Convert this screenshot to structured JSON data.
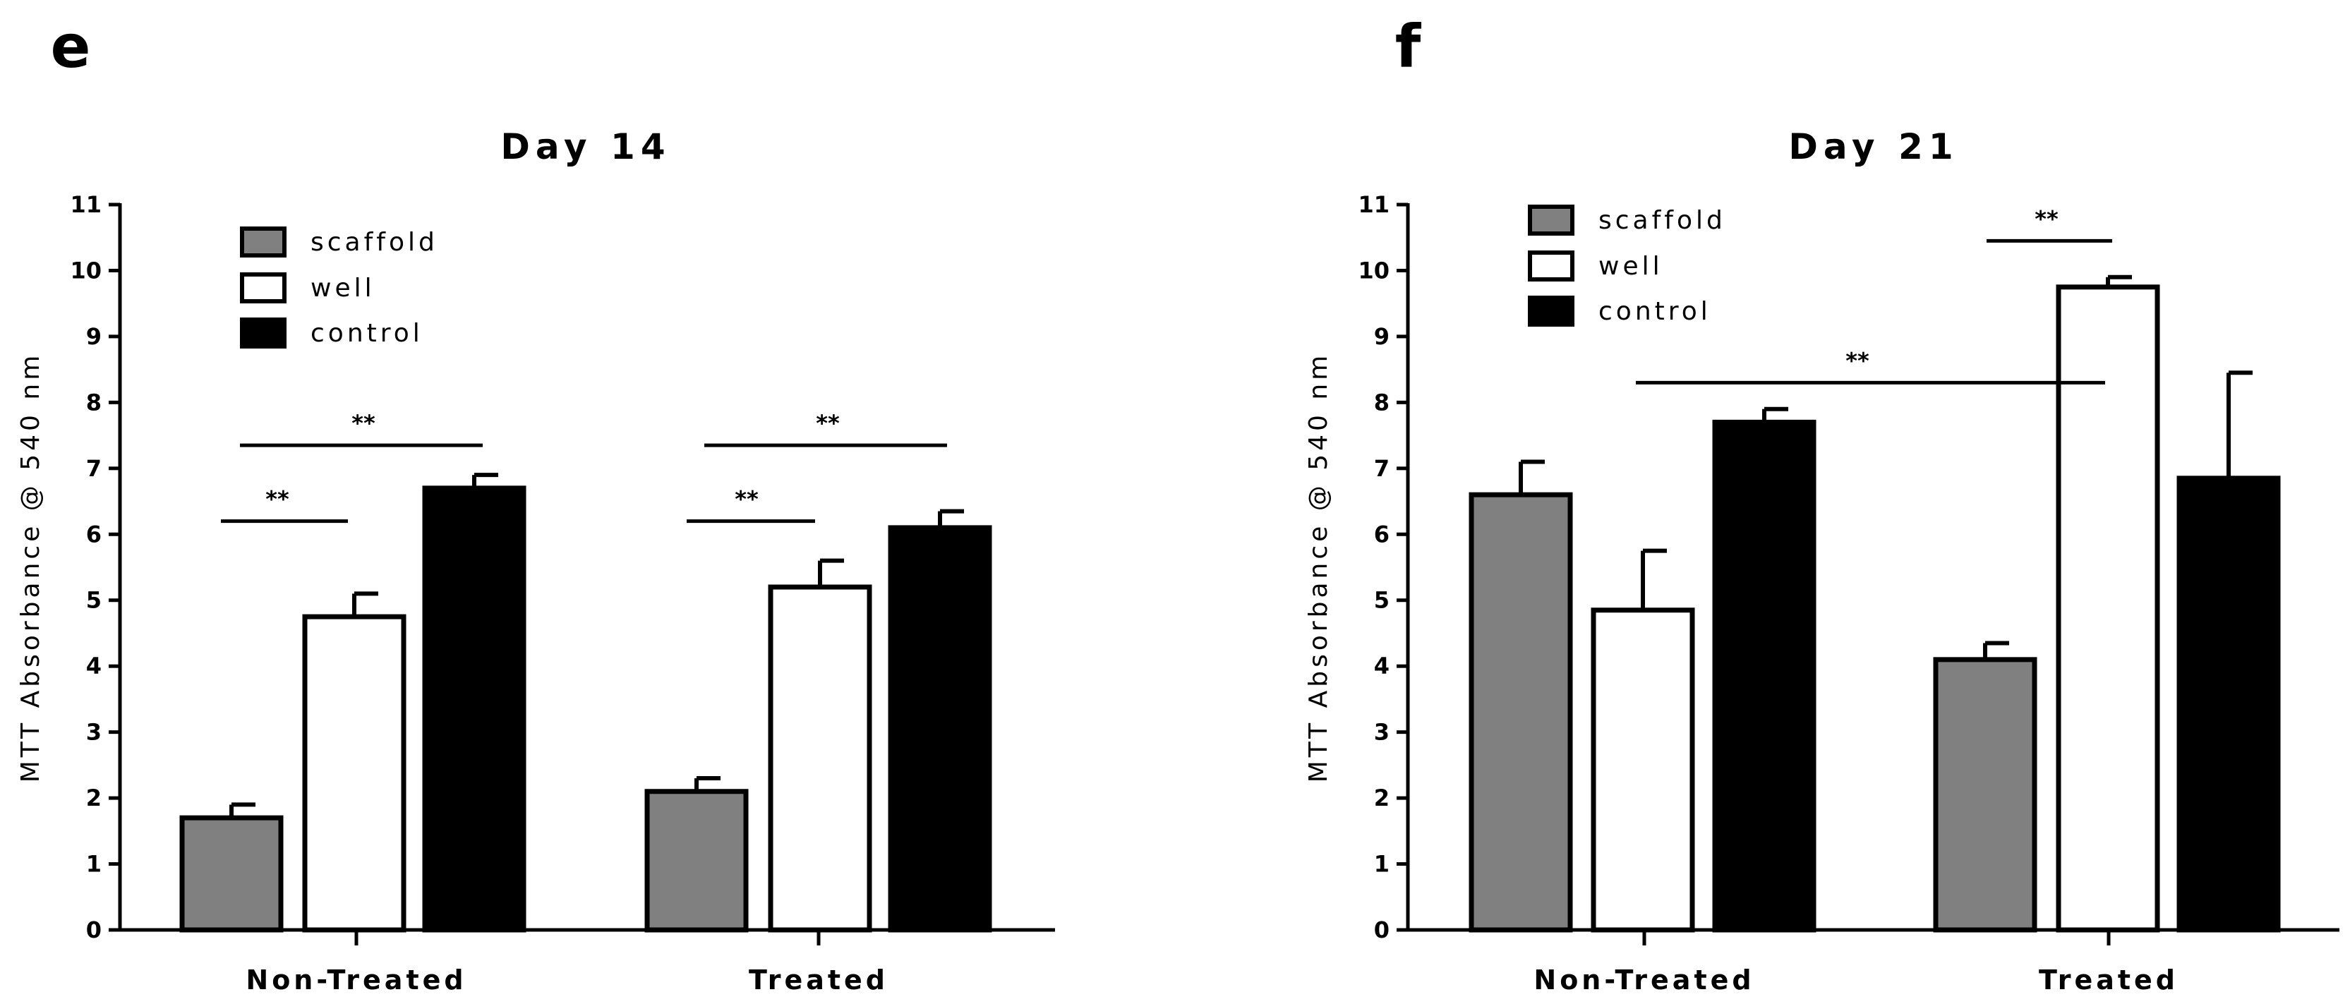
{
  "chart_data": [
    {
      "type": "bar",
      "panel_label": "e",
      "title": "Day 14",
      "xlabel": "",
      "ylabel": "MTT Absorbance @ 540 nm",
      "ylim": [
        0,
        11
      ],
      "yticks": [
        "0",
        "1",
        "2",
        "3",
        "4",
        "5",
        "6",
        "7",
        "8",
        "9",
        "10",
        "11"
      ],
      "categories": [
        "Non-Treated",
        "Treated"
      ],
      "legend_position": "top-left",
      "grid": false,
      "series": [
        {
          "name": "scaffold",
          "color": "#808080",
          "values": [
            1.7,
            2.1
          ],
          "errors": [
            0.2,
            0.2
          ]
        },
        {
          "name": "well",
          "color": "#ffffff",
          "values": [
            4.75,
            5.2
          ],
          "errors": [
            0.35,
            0.4
          ]
        },
        {
          "name": "control",
          "color": "#000000",
          "values": [
            6.7,
            6.1
          ],
          "errors": [
            0.2,
            0.25
          ]
        }
      ],
      "significance": [
        {
          "label": "**",
          "category": 0,
          "from_series": 0,
          "to_series": 1,
          "y": 6.2
        },
        {
          "label": "**",
          "category": 0,
          "from_series": 0,
          "to_series": 2,
          "y": 7.35
        },
        {
          "label": "**",
          "category": 1,
          "from_series": 0,
          "to_series": 1,
          "y": 6.2
        },
        {
          "label": "**",
          "category": 1,
          "from_series": 0,
          "to_series": 2,
          "y": 7.35
        }
      ]
    },
    {
      "type": "bar",
      "panel_label": "f",
      "title": "Day 21",
      "xlabel": "",
      "ylabel": "MTT Absorbance @ 540 nm",
      "ylim": [
        0,
        11
      ],
      "yticks": [
        "0",
        "1",
        "2",
        "3",
        "4",
        "5",
        "6",
        "7",
        "8",
        "9",
        "10",
        "11"
      ],
      "categories": [
        "Non-Treated",
        "Treated"
      ],
      "legend_position": "top-left",
      "grid": false,
      "series": [
        {
          "name": "scaffold",
          "color": "#808080",
          "values": [
            6.6,
            4.1
          ],
          "errors": [
            0.5,
            0.25
          ]
        },
        {
          "name": "well",
          "color": "#ffffff",
          "values": [
            4.85,
            9.75
          ],
          "errors": [
            0.9,
            0.15
          ]
        },
        {
          "name": "control",
          "color": "#000000",
          "values": [
            7.7,
            6.85
          ],
          "errors": [
            0.2,
            1.6
          ]
        }
      ],
      "significance": [
        {
          "label": "**",
          "from": [
            0,
            1
          ],
          "to": [
            1,
            1
          ],
          "y": 8.3
        },
        {
          "label": "**",
          "from": [
            1,
            0
          ],
          "to": [
            1,
            1
          ],
          "y": 10.45
        }
      ]
    }
  ]
}
